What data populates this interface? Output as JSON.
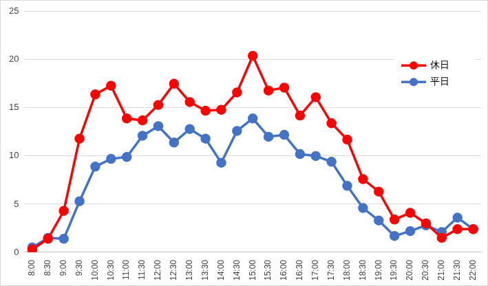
{
  "chart_data": {
    "type": "line",
    "categories": [
      "8:00",
      "8:30",
      "9:00",
      "9:30",
      "10:00",
      "10:30",
      "11:00",
      "11:30",
      "12:00",
      "12:30",
      "13:00",
      "13:30",
      "14:00",
      "14:30",
      "15:00",
      "15:30",
      "16:00",
      "16:30",
      "17:00",
      "17:30",
      "18:00",
      "18:30",
      "19:00",
      "19:30",
      "20:00",
      "20:30",
      "21:00",
      "21:30",
      "22:00"
    ],
    "series": [
      {
        "name": "休日",
        "color": "#ff0000",
        "marker": "circle",
        "values": [
          0.3,
          1.4,
          4.3,
          11.8,
          16.4,
          17.3,
          13.9,
          13.7,
          15.3,
          17.5,
          15.6,
          14.7,
          14.8,
          16.6,
          20.4,
          16.8,
          17.1,
          14.2,
          16.1,
          13.4,
          11.7,
          7.6,
          6.3,
          3.4,
          4.1,
          3.0,
          1.5,
          2.4,
          2.4
        ]
      },
      {
        "name": "平日",
        "color": "#4472c4",
        "marker": "circle",
        "values": [
          0.5,
          1.5,
          1.4,
          5.3,
          8.9,
          9.7,
          9.9,
          12.1,
          13.1,
          11.4,
          12.8,
          11.8,
          9.3,
          12.6,
          13.9,
          12.0,
          12.2,
          10.2,
          10.0,
          9.4,
          6.9,
          4.6,
          3.3,
          1.7,
          2.2,
          2.8,
          2.1,
          3.6,
          2.4
        ]
      }
    ],
    "ylim": [
      0,
      25
    ],
    "yticks": [
      0,
      5,
      10,
      15,
      20,
      25
    ],
    "grid": true,
    "legend": "top-right"
  }
}
